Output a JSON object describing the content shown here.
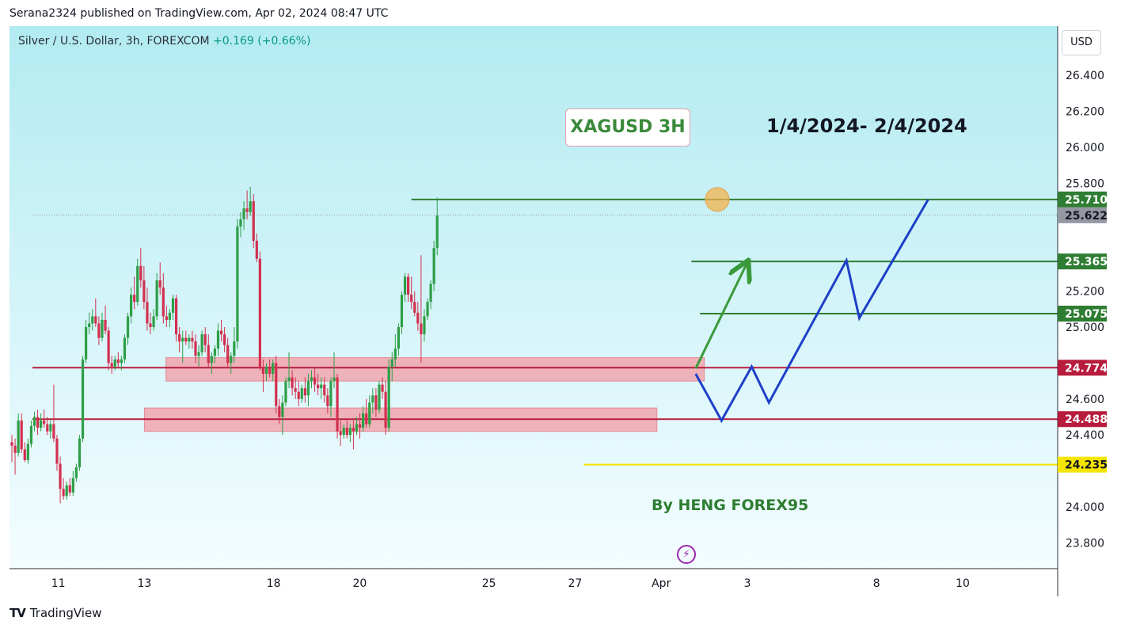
{
  "header": {
    "published": "Serana2324 published on TradingView.com, Apr 02, 2024 08:47 UTC"
  },
  "symbol": {
    "name": "Silver / U.S. Dollar, 3h, FOREXCOM",
    "change": "+0.169 (+0.66%)"
  },
  "currency_button": "USD",
  "annotations": {
    "title": "XAGUSD 3H",
    "date_range": "1/4/2024- 2/4/2024",
    "author": "By HENG FOREX95"
  },
  "footer": {
    "brand": "TradingView",
    "logo": "TV"
  },
  "colors": {
    "background_top": "#b2ebf2",
    "background_bottom": "#f4fdff",
    "up": "#2e9e47",
    "down": "#d32f4e",
    "resistance_line": "#2e7d32",
    "support_line": "#b71c3c",
    "zone_fill": "#f2a0aa",
    "forecast_blue": "#1e40c8",
    "forecast_green": "#3a9a3a",
    "yellow_line": "#f5e400",
    "bolt": "#9c27b0"
  },
  "chart_data": {
    "type": "candlestick",
    "symbol": "XAGUSD",
    "timeframe": "3h",
    "y_axis": {
      "min": 23.7,
      "max": 26.6,
      "ticks": [
        23.8,
        24.0,
        24.4,
        24.6,
        25.0,
        25.2,
        25.8,
        26.0,
        26.2,
        26.4
      ]
    },
    "x_axis": {
      "labels": [
        {
          "label": "11",
          "x": 0.6
        },
        {
          "label": "13",
          "x": 2.6
        },
        {
          "label": "18",
          "x": 5.6
        },
        {
          "label": "20",
          "x": 7.6
        },
        {
          "label": "25",
          "x": 10.6
        },
        {
          "label": "27",
          "x": 12.6
        },
        {
          "label": "Apr",
          "x": 14.6
        },
        {
          "label": "3",
          "x": 16.6
        },
        {
          "label": "8",
          "x": 19.6
        },
        {
          "label": "10",
          "x": 21.6
        }
      ]
    },
    "price_labels": [
      {
        "value": 25.71,
        "text": "25.710",
        "style": "green"
      },
      {
        "value": 25.622,
        "text": "25.622",
        "style": "gray"
      },
      {
        "value": 25.365,
        "text": "25.365",
        "style": "green"
      },
      {
        "value": 25.075,
        "text": "25.075",
        "style": "green"
      },
      {
        "value": 24.774,
        "text": "24.774",
        "style": "red"
      },
      {
        "value": 24.488,
        "text": "24.488",
        "style": "red"
      },
      {
        "value": 24.235,
        "text": "24.235",
        "style": "yellow"
      }
    ],
    "horizontal_lines": [
      {
        "value": 25.71,
        "x_start": 8.8,
        "x_end": 24.6,
        "color": "#2e7d32"
      },
      {
        "value": 25.365,
        "x_start": 15.3,
        "x_end": 24.6,
        "color": "#2e7d32"
      },
      {
        "value": 25.075,
        "x_start": 15.5,
        "x_end": 24.6,
        "color": "#2e7d32"
      },
      {
        "value": 24.774,
        "x_start": 0.0,
        "x_end": 24.6,
        "color": "#b71c3c"
      },
      {
        "value": 24.488,
        "x_start": 0.0,
        "x_end": 24.6,
        "color": "#b71c3c"
      },
      {
        "value": 24.235,
        "x_start": 12.8,
        "x_end": 24.6,
        "color": "#f5e400"
      },
      {
        "value": 25.622,
        "x_start": 0.0,
        "x_end": 24.6,
        "color": "#9598a1",
        "dotted": true
      }
    ],
    "zones": [
      {
        "x_start": 3.1,
        "x_end": 15.6,
        "y_low": 24.7,
        "y_high": 24.83
      },
      {
        "x_start": 2.6,
        "x_end": 14.5,
        "y_low": 24.42,
        "y_high": 24.55
      }
    ],
    "forecast_paths": [
      {
        "color": "#1e40c8",
        "points": [
          [
            15.4,
            24.74
          ],
          [
            16.0,
            24.48
          ],
          [
            16.7,
            24.78
          ],
          [
            17.1,
            24.58
          ],
          [
            18.9,
            25.37
          ],
          [
            19.2,
            25.05
          ],
          [
            20.8,
            25.71
          ]
        ]
      },
      {
        "color": "#3a9a3a",
        "points": [
          [
            15.4,
            24.77
          ],
          [
            16.6,
            25.36
          ]
        ],
        "arrow": true
      }
    ],
    "marker": {
      "x": 15.9,
      "y": 25.71
    },
    "candles": [
      {
        "o": 24.36,
        "h": 24.4,
        "l": 24.25,
        "c": 24.34
      },
      {
        "o": 24.34,
        "h": 24.38,
        "l": 24.18,
        "c": 24.3
      },
      {
        "o": 24.3,
        "h": 24.52,
        "l": 24.28,
        "c": 24.48
      },
      {
        "o": 24.48,
        "h": 24.52,
        "l": 24.3,
        "c": 24.32
      },
      {
        "o": 24.32,
        "h": 24.36,
        "l": 24.25,
        "c": 24.26
      },
      {
        "o": 24.26,
        "h": 24.38,
        "l": 24.24,
        "c": 24.35
      },
      {
        "o": 24.35,
        "h": 24.48,
        "l": 24.33,
        "c": 24.45
      },
      {
        "o": 24.45,
        "h": 24.53,
        "l": 24.42,
        "c": 24.5
      },
      {
        "o": 24.5,
        "h": 24.54,
        "l": 24.4,
        "c": 24.44
      },
      {
        "o": 24.44,
        "h": 24.52,
        "l": 24.42,
        "c": 24.48
      },
      {
        "o": 24.48,
        "h": 24.54,
        "l": 24.44,
        "c": 24.46
      },
      {
        "o": 24.46,
        "h": 24.5,
        "l": 24.4,
        "c": 24.42
      },
      {
        "o": 24.42,
        "h": 24.48,
        "l": 24.38,
        "c": 24.46
      },
      {
        "o": 24.46,
        "h": 24.68,
        "l": 24.36,
        "c": 24.38
      },
      {
        "o": 24.38,
        "h": 24.4,
        "l": 24.2,
        "c": 24.24
      },
      {
        "o": 24.24,
        "h": 24.28,
        "l": 24.02,
        "c": 24.1
      },
      {
        "o": 24.1,
        "h": 24.16,
        "l": 24.04,
        "c": 24.06
      },
      {
        "o": 24.06,
        "h": 24.14,
        "l": 24.04,
        "c": 24.12
      },
      {
        "o": 24.12,
        "h": 24.16,
        "l": 24.06,
        "c": 24.08
      },
      {
        "o": 24.08,
        "h": 24.2,
        "l": 24.06,
        "c": 24.16
      },
      {
        "o": 24.16,
        "h": 24.24,
        "l": 24.14,
        "c": 24.22
      },
      {
        "o": 24.22,
        "h": 24.4,
        "l": 24.2,
        "c": 24.38
      },
      {
        "o": 24.38,
        "h": 24.84,
        "l": 24.36,
        "c": 24.82
      },
      {
        "o": 24.82,
        "h": 25.04,
        "l": 24.8,
        "c": 25.0
      },
      {
        "o": 25.0,
        "h": 25.08,
        "l": 24.96,
        "c": 25.02
      },
      {
        "o": 25.02,
        "h": 25.1,
        "l": 24.98,
        "c": 25.06
      },
      {
        "o": 25.06,
        "h": 25.16,
        "l": 25.0,
        "c": 25.02
      },
      {
        "o": 25.02,
        "h": 25.06,
        "l": 24.9,
        "c": 24.94
      },
      {
        "o": 24.94,
        "h": 25.08,
        "l": 24.92,
        "c": 25.04
      },
      {
        "o": 25.04,
        "h": 25.12,
        "l": 24.96,
        "c": 24.98
      },
      {
        "o": 24.98,
        "h": 25.0,
        "l": 24.76,
        "c": 24.8
      },
      {
        "o": 24.8,
        "h": 24.84,
        "l": 24.74,
        "c": 24.78
      },
      {
        "o": 24.78,
        "h": 24.84,
        "l": 24.76,
        "c": 24.82
      },
      {
        "o": 24.82,
        "h": 24.86,
        "l": 24.78,
        "c": 24.8
      },
      {
        "o": 24.8,
        "h": 24.84,
        "l": 24.76,
        "c": 24.82
      },
      {
        "o": 24.82,
        "h": 24.96,
        "l": 24.8,
        "c": 24.94
      },
      {
        "o": 24.94,
        "h": 25.08,
        "l": 24.9,
        "c": 25.06
      },
      {
        "o": 25.06,
        "h": 25.22,
        "l": 25.02,
        "c": 25.18
      },
      {
        "o": 25.18,
        "h": 25.28,
        "l": 25.1,
        "c": 25.14
      },
      {
        "o": 25.14,
        "h": 25.38,
        "l": 25.12,
        "c": 25.34
      },
      {
        "o": 25.34,
        "h": 25.44,
        "l": 25.22,
        "c": 25.26
      },
      {
        "o": 25.26,
        "h": 25.34,
        "l": 25.1,
        "c": 25.14
      },
      {
        "o": 25.14,
        "h": 25.22,
        "l": 24.98,
        "c": 25.02
      },
      {
        "o": 25.02,
        "h": 25.08,
        "l": 24.96,
        "c": 25.0
      },
      {
        "o": 25.0,
        "h": 25.1,
        "l": 24.98,
        "c": 25.06
      },
      {
        "o": 25.06,
        "h": 25.3,
        "l": 25.04,
        "c": 25.26
      },
      {
        "o": 25.26,
        "h": 25.36,
        "l": 25.18,
        "c": 25.22
      },
      {
        "o": 25.22,
        "h": 25.3,
        "l": 25.02,
        "c": 25.06
      },
      {
        "o": 25.06,
        "h": 25.12,
        "l": 25.0,
        "c": 25.04
      },
      {
        "o": 25.04,
        "h": 25.1,
        "l": 25.0,
        "c": 25.08
      },
      {
        "o": 25.08,
        "h": 25.18,
        "l": 25.04,
        "c": 25.16
      },
      {
        "o": 25.16,
        "h": 25.18,
        "l": 24.92,
        "c": 24.96
      },
      {
        "o": 24.96,
        "h": 25.0,
        "l": 24.86,
        "c": 24.92
      },
      {
        "o": 24.92,
        "h": 24.98,
        "l": 24.8,
        "c": 24.94
      },
      {
        "o": 24.94,
        "h": 24.98,
        "l": 24.9,
        "c": 24.92
      },
      {
        "o": 24.92,
        "h": 24.96,
        "l": 24.88,
        "c": 24.94
      },
      {
        "o": 24.94,
        "h": 24.98,
        "l": 24.88,
        "c": 24.92
      },
      {
        "o": 24.92,
        "h": 24.96,
        "l": 24.8,
        "c": 24.84
      },
      {
        "o": 24.84,
        "h": 24.9,
        "l": 24.78,
        "c": 24.86
      },
      {
        "o": 24.86,
        "h": 24.98,
        "l": 24.84,
        "c": 24.96
      },
      {
        "o": 24.96,
        "h": 25.0,
        "l": 24.86,
        "c": 24.9
      },
      {
        "o": 24.9,
        "h": 24.96,
        "l": 24.78,
        "c": 24.8
      },
      {
        "o": 24.8,
        "h": 24.86,
        "l": 24.74,
        "c": 24.84
      },
      {
        "o": 24.84,
        "h": 24.9,
        "l": 24.8,
        "c": 24.88
      },
      {
        "o": 24.88,
        "h": 25.02,
        "l": 24.84,
        "c": 24.98
      },
      {
        "o": 24.98,
        "h": 25.04,
        "l": 24.92,
        "c": 24.96
      },
      {
        "o": 24.96,
        "h": 25.0,
        "l": 24.86,
        "c": 24.9
      },
      {
        "o": 24.9,
        "h": 24.94,
        "l": 24.78,
        "c": 24.8
      },
      {
        "o": 24.8,
        "h": 24.86,
        "l": 24.74,
        "c": 24.84
      },
      {
        "o": 24.84,
        "h": 25.0,
        "l": 24.8,
        "c": 24.92
      },
      {
        "o": 24.92,
        "h": 25.6,
        "l": 24.88,
        "c": 25.56
      },
      {
        "o": 25.56,
        "h": 25.64,
        "l": 25.5,
        "c": 25.6
      },
      {
        "o": 25.6,
        "h": 25.7,
        "l": 25.54,
        "c": 25.66
      },
      {
        "o": 25.66,
        "h": 25.76,
        "l": 25.6,
        "c": 25.64
      },
      {
        "o": 25.64,
        "h": 25.78,
        "l": 25.62,
        "c": 25.7
      },
      {
        "o": 25.7,
        "h": 25.74,
        "l": 25.44,
        "c": 25.48
      },
      {
        "o": 25.48,
        "h": 25.52,
        "l": 25.36,
        "c": 25.38
      },
      {
        "o": 25.38,
        "h": 25.42,
        "l": 24.76,
        "c": 24.78
      },
      {
        "o": 24.78,
        "h": 24.82,
        "l": 24.64,
        "c": 24.74
      },
      {
        "o": 24.74,
        "h": 24.8,
        "l": 24.7,
        "c": 24.78
      },
      {
        "o": 24.78,
        "h": 24.82,
        "l": 24.72,
        "c": 24.74
      },
      {
        "o": 24.74,
        "h": 24.82,
        "l": 24.7,
        "c": 24.8
      },
      {
        "o": 24.8,
        "h": 24.84,
        "l": 24.52,
        "c": 24.56
      },
      {
        "o": 24.56,
        "h": 24.6,
        "l": 24.46,
        "c": 24.5
      },
      {
        "o": 24.5,
        "h": 24.62,
        "l": 24.4,
        "c": 24.58
      },
      {
        "o": 24.58,
        "h": 24.72,
        "l": 24.56,
        "c": 24.7
      },
      {
        "o": 24.7,
        "h": 24.86,
        "l": 24.66,
        "c": 24.72
      },
      {
        "o": 24.72,
        "h": 24.76,
        "l": 24.62,
        "c": 24.66
      },
      {
        "o": 24.66,
        "h": 24.72,
        "l": 24.6,
        "c": 24.64
      },
      {
        "o": 24.64,
        "h": 24.7,
        "l": 24.56,
        "c": 24.6
      },
      {
        "o": 24.6,
        "h": 24.68,
        "l": 24.58,
        "c": 24.66
      },
      {
        "o": 24.66,
        "h": 24.72,
        "l": 24.58,
        "c": 24.62
      },
      {
        "o": 24.62,
        "h": 24.74,
        "l": 24.56,
        "c": 24.7
      },
      {
        "o": 24.7,
        "h": 24.76,
        "l": 24.66,
        "c": 24.72
      },
      {
        "o": 24.72,
        "h": 24.78,
        "l": 24.64,
        "c": 24.68
      },
      {
        "o": 24.68,
        "h": 24.74,
        "l": 24.62,
        "c": 24.66
      },
      {
        "o": 24.66,
        "h": 24.72,
        "l": 24.6,
        "c": 24.68
      },
      {
        "o": 24.68,
        "h": 24.72,
        "l": 24.58,
        "c": 24.62
      },
      {
        "o": 24.62,
        "h": 24.66,
        "l": 24.52,
        "c": 24.56
      },
      {
        "o": 24.56,
        "h": 24.72,
        "l": 24.5,
        "c": 24.7
      },
      {
        "o": 24.7,
        "h": 24.86,
        "l": 24.66,
        "c": 24.72
      },
      {
        "o": 24.72,
        "h": 24.74,
        "l": 24.38,
        "c": 24.42
      },
      {
        "o": 24.42,
        "h": 24.48,
        "l": 24.34,
        "c": 24.4
      },
      {
        "o": 24.4,
        "h": 24.46,
        "l": 24.38,
        "c": 24.44
      },
      {
        "o": 24.44,
        "h": 24.48,
        "l": 24.38,
        "c": 24.4
      },
      {
        "o": 24.4,
        "h": 24.46,
        "l": 24.36,
        "c": 24.44
      },
      {
        "o": 24.44,
        "h": 24.48,
        "l": 24.32,
        "c": 24.42
      },
      {
        "o": 24.42,
        "h": 24.5,
        "l": 24.4,
        "c": 24.46
      },
      {
        "o": 24.46,
        "h": 24.52,
        "l": 24.38,
        "c": 24.44
      },
      {
        "o": 24.44,
        "h": 24.56,
        "l": 24.42,
        "c": 24.52
      },
      {
        "o": 24.52,
        "h": 24.6,
        "l": 24.44,
        "c": 24.46
      },
      {
        "o": 24.46,
        "h": 24.62,
        "l": 24.44,
        "c": 24.58
      },
      {
        "o": 24.58,
        "h": 24.66,
        "l": 24.52,
        "c": 24.62
      },
      {
        "o": 24.62,
        "h": 24.66,
        "l": 24.5,
        "c": 24.54
      },
      {
        "o": 24.54,
        "h": 24.7,
        "l": 24.52,
        "c": 24.68
      },
      {
        "o": 24.68,
        "h": 24.72,
        "l": 24.6,
        "c": 24.64
      },
      {
        "o": 24.64,
        "h": 24.7,
        "l": 24.4,
        "c": 24.44
      },
      {
        "o": 24.44,
        "h": 24.82,
        "l": 24.42,
        "c": 24.78
      },
      {
        "o": 24.78,
        "h": 24.86,
        "l": 24.7,
        "c": 24.82
      },
      {
        "o": 24.82,
        "h": 24.96,
        "l": 24.78,
        "c": 24.88
      },
      {
        "o": 24.88,
        "h": 25.02,
        "l": 24.84,
        "c": 25.0
      },
      {
        "o": 25.0,
        "h": 25.2,
        "l": 24.96,
        "c": 25.18
      },
      {
        "o": 25.18,
        "h": 25.3,
        "l": 25.14,
        "c": 25.28
      },
      {
        "o": 25.28,
        "h": 25.3,
        "l": 25.14,
        "c": 25.18
      },
      {
        "o": 25.18,
        "h": 25.28,
        "l": 25.1,
        "c": 25.14
      },
      {
        "o": 25.14,
        "h": 25.2,
        "l": 25.06,
        "c": 25.08
      },
      {
        "o": 25.08,
        "h": 25.14,
        "l": 24.98,
        "c": 25.02
      },
      {
        "o": 25.02,
        "h": 25.4,
        "l": 24.8,
        "c": 24.96
      },
      {
        "o": 24.96,
        "h": 25.1,
        "l": 24.92,
        "c": 25.06
      },
      {
        "o": 25.06,
        "h": 25.16,
        "l": 25.04,
        "c": 25.14
      },
      {
        "o": 25.14,
        "h": 25.26,
        "l": 25.1,
        "c": 25.24
      },
      {
        "o": 25.24,
        "h": 25.48,
        "l": 25.2,
        "c": 25.44
      },
      {
        "o": 25.44,
        "h": 25.72,
        "l": 25.4,
        "c": 25.62
      }
    ]
  }
}
